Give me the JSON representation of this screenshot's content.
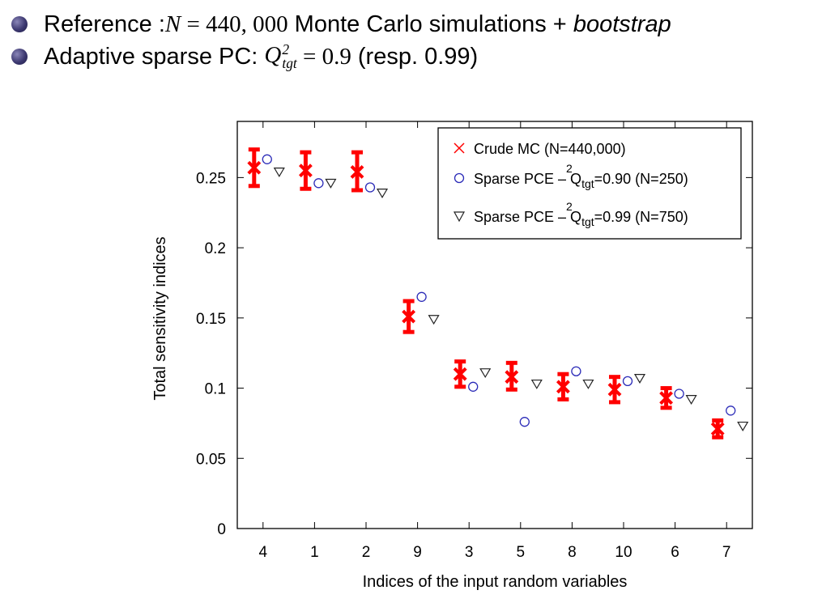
{
  "bullets": [
    {
      "prefix": "Reference : ",
      "math_var": "N",
      "math_eq": " = ",
      "math_num": "440, 000",
      "text_mid": " Monte Carlo simulations + ",
      "text_italic": "bootstrap"
    },
    {
      "prefix": "Adaptive sparse PC: ",
      "math_var": "Q",
      "math_sup": "2",
      "math_sub": "tgt",
      "math_eq": " = ",
      "math_num": "0.9",
      "suffix": " (resp. 0.99)"
    }
  ],
  "colors": {
    "crude_mc": "#ff0000",
    "pce_090": "#2b2bb8",
    "pce_099": "#222222",
    "bullet_dot": "#3c3870"
  },
  "chart_data": {
    "type": "scatter",
    "xlabel": "Indices of the input random variables",
    "ylabel": "Total sensitivity indices",
    "categories": [
      "4",
      "1",
      "2",
      "9",
      "3",
      "5",
      "8",
      "10",
      "6",
      "7"
    ],
    "ylim": [
      0,
      0.29
    ],
    "yticks": [
      "0",
      "0.05",
      "0.1",
      "0.15",
      "0.2",
      "0.25"
    ],
    "legend_position": "top-right",
    "series": [
      {
        "name": "Crude MC (N=440,000)",
        "marker": "x",
        "values": [
          0.257,
          0.255,
          0.254,
          0.151,
          0.11,
          0.108,
          0.101,
          0.099,
          0.093,
          0.071
        ],
        "error_low": [
          0.244,
          0.242,
          0.241,
          0.14,
          0.101,
          0.099,
          0.092,
          0.09,
          0.086,
          0.065
        ],
        "error_high": [
          0.27,
          0.268,
          0.268,
          0.162,
          0.119,
          0.118,
          0.11,
          0.108,
          0.1,
          0.077
        ]
      },
      {
        "name": "Sparse PCE – Q",
        "name_sup": "2",
        "name_sub": "tgt",
        "name_rest": "=0.90 (N=250)",
        "marker": "circle",
        "values": [
          0.263,
          0.246,
          0.243,
          0.165,
          0.101,
          0.076,
          0.112,
          0.105,
          0.096,
          0.084
        ]
      },
      {
        "name": "Sparse PCE – Q",
        "name_sup": "2",
        "name_sub": "tgt",
        "name_rest": "=0.99 (N=750)",
        "marker": "triangle-down",
        "values": [
          0.254,
          0.246,
          0.239,
          0.149,
          0.111,
          0.103,
          0.103,
          0.107,
          0.092,
          0.073
        ]
      }
    ]
  }
}
